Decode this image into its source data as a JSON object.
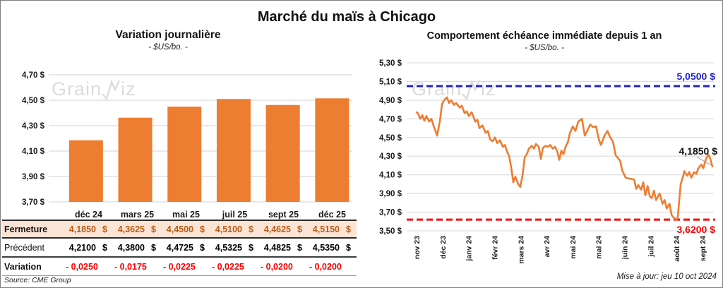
{
  "page": {
    "title": "Marché du maïs à Chicago",
    "source_note": "Source: CME Group",
    "update_note": "Mise à jour: jeu 10 oct 2024",
    "watermark": {
      "prefix": "Grain",
      "suffix": "iz"
    }
  },
  "colors": {
    "orange": "#ED7D31",
    "blue": "#2222CC",
    "red": "#FF0000",
    "fermeture_bg": "#FBE3D5",
    "fermeture_text": "#B85C14",
    "grid": "#D9D9D9",
    "axis_text": "#1a1a1a",
    "watermark": "#DCDCDC",
    "leader": "#A6A6A6"
  },
  "table": {
    "columns": [
      "déc 24",
      "mars 25",
      "mai 25",
      "juil 25",
      "sept 25",
      "déc 25"
    ],
    "rows": [
      {
        "key": "fermeture",
        "label": "Fermeture",
        "unit": "$",
        "values": [
          "4,1850",
          "4,3625",
          "4,4500",
          "4,5100",
          "4,4625",
          "4,5150"
        ]
      },
      {
        "key": "precedent",
        "label": "Précédent",
        "unit": "$",
        "values": [
          "4,2100",
          "4,3800",
          "4,4725",
          "4,5325",
          "4,4825",
          "4,5350"
        ]
      },
      {
        "key": "variation",
        "label": "Variation",
        "unit": "",
        "values": [
          "- 0,0250",
          "- 0,0175",
          "- 0,0225",
          "- 0,0225",
          "- 0,0200",
          "- 0,0200"
        ]
      }
    ]
  },
  "chart_data": [
    {
      "type": "bar",
      "title": "Variation  journalière",
      "subtitle": "- $US/bo. -",
      "categories": [
        "déc 24",
        "mars 25",
        "mai 25",
        "juil 25",
        "sept 25",
        "déc 25"
      ],
      "values": [
        4.185,
        4.3625,
        4.45,
        4.51,
        4.4625,
        4.515
      ],
      "ylim": [
        3.7,
        4.7
      ],
      "ytick_step": 0.2,
      "grid": true,
      "currency_format": "fr"
    },
    {
      "type": "line",
      "title": "Comportement  échéance  immédiate  depuis 1 an",
      "subtitle": "- $US/bo. -",
      "x_tick_labels": [
        "nov 23",
        "déc 23",
        "janv 24",
        "févr 24",
        "mars 24",
        "avr 24",
        "mai 24",
        "mai 24",
        "juin 24",
        "juil 24",
        "août 24",
        "sept 24"
      ],
      "ylim": [
        3.5,
        5.3
      ],
      "ytick_step": 0.2,
      "grid": true,
      "resistance": {
        "value": 5.05,
        "label": "5,0500 $"
      },
      "support": {
        "value": 3.62,
        "label": "3,6200 $"
      },
      "last": {
        "value": 4.185,
        "label": "4,1850 $"
      },
      "points": [
        [
          0,
          4.77
        ],
        [
          0.05,
          4.76
        ],
        [
          0.14,
          4.7
        ],
        [
          0.22,
          4.74
        ],
        [
          0.3,
          4.68
        ],
        [
          0.38,
          4.73
        ],
        [
          0.49,
          4.67
        ],
        [
          0.57,
          4.7
        ],
        [
          0.65,
          4.63
        ],
        [
          0.79,
          4.52
        ],
        [
          0.9,
          4.68
        ],
        [
          0.98,
          4.86
        ],
        [
          1.06,
          4.9
        ],
        [
          1.17,
          4.93
        ],
        [
          1.25,
          4.87
        ],
        [
          1.33,
          4.9
        ],
        [
          1.44,
          4.85
        ],
        [
          1.52,
          4.87
        ],
        [
          1.66,
          4.82
        ],
        [
          1.74,
          4.84
        ],
        [
          1.85,
          4.76
        ],
        [
          1.93,
          4.78
        ],
        [
          2.01,
          4.73
        ],
        [
          2.12,
          4.77
        ],
        [
          2.26,
          4.67
        ],
        [
          2.34,
          4.69
        ],
        [
          2.42,
          4.6
        ],
        [
          2.53,
          4.63
        ],
        [
          2.66,
          4.55
        ],
        [
          2.74,
          4.57
        ],
        [
          2.83,
          4.48
        ],
        [
          2.93,
          4.46
        ],
        [
          3.02,
          4.5
        ],
        [
          3.1,
          4.44
        ],
        [
          3.21,
          4.47
        ],
        [
          3.32,
          4.4
        ],
        [
          3.4,
          4.42
        ],
        [
          3.48,
          4.35
        ],
        [
          3.56,
          4.3
        ],
        [
          3.64,
          4.18
        ],
        [
          3.72,
          4.02
        ],
        [
          3.8,
          4.08
        ],
        [
          3.91,
          4.0
        ],
        [
          3.99,
          3.97
        ],
        [
          4.08,
          4.1
        ],
        [
          4.16,
          4.29
        ],
        [
          4.24,
          4.32
        ],
        [
          4.32,
          4.38
        ],
        [
          4.43,
          4.41
        ],
        [
          4.51,
          4.38
        ],
        [
          4.59,
          4.43
        ],
        [
          4.7,
          4.4
        ],
        [
          4.78,
          4.27
        ],
        [
          4.86,
          4.39
        ],
        [
          4.97,
          4.41
        ],
        [
          5.05,
          4.4
        ],
        [
          5.14,
          4.42
        ],
        [
          5.24,
          4.38
        ],
        [
          5.33,
          4.4
        ],
        [
          5.41,
          4.35
        ],
        [
          5.49,
          4.26
        ],
        [
          5.57,
          4.36
        ],
        [
          5.65,
          4.32
        ],
        [
          5.73,
          4.4
        ],
        [
          5.82,
          4.45
        ],
        [
          5.9,
          4.55
        ],
        [
          6.01,
          4.62
        ],
        [
          6.11,
          4.57
        ],
        [
          6.22,
          4.67
        ],
        [
          6.36,
          4.7
        ],
        [
          6.47,
          4.52
        ],
        [
          6.58,
          4.58
        ],
        [
          6.68,
          4.64
        ],
        [
          6.79,
          4.61
        ],
        [
          6.9,
          4.62
        ],
        [
          7.01,
          4.48
        ],
        [
          7.09,
          4.42
        ],
        [
          7.23,
          4.52
        ],
        [
          7.34,
          4.57
        ],
        [
          7.45,
          4.5
        ],
        [
          7.55,
          4.46
        ],
        [
          7.66,
          4.31
        ],
        [
          7.83,
          4.25
        ],
        [
          7.91,
          4.15
        ],
        [
          8.04,
          4.07
        ],
        [
          8.18,
          4.06
        ],
        [
          8.37,
          4.05
        ],
        [
          8.45,
          3.95
        ],
        [
          8.53,
          3.99
        ],
        [
          8.64,
          3.94
        ],
        [
          8.72,
          4.02
        ],
        [
          8.8,
          3.88
        ],
        [
          8.89,
          3.98
        ],
        [
          8.97,
          3.87
        ],
        [
          9.05,
          3.85
        ],
        [
          9.13,
          3.93
        ],
        [
          9.21,
          3.83
        ],
        [
          9.35,
          3.9
        ],
        [
          9.46,
          3.79
        ],
        [
          9.54,
          3.83
        ],
        [
          9.62,
          3.74
        ],
        [
          9.73,
          3.79
        ],
        [
          9.81,
          3.67
        ],
        [
          9.89,
          3.64
        ],
        [
          10.0,
          3.62
        ],
        [
          10.05,
          3.65
        ],
        [
          10.11,
          3.85
        ],
        [
          10.16,
          4.0
        ],
        [
          10.27,
          4.1
        ],
        [
          10.3,
          4.14
        ],
        [
          10.41,
          4.09
        ],
        [
          10.49,
          4.13
        ],
        [
          10.57,
          4.07
        ],
        [
          10.68,
          4.13
        ],
        [
          10.76,
          4.11
        ],
        [
          10.84,
          4.17
        ],
        [
          10.95,
          4.21
        ],
        [
          11.03,
          4.17
        ],
        [
          11.11,
          4.25
        ],
        [
          11.22,
          4.32
        ],
        [
          11.3,
          4.27
        ],
        [
          11.38,
          4.19
        ]
      ]
    }
  ]
}
